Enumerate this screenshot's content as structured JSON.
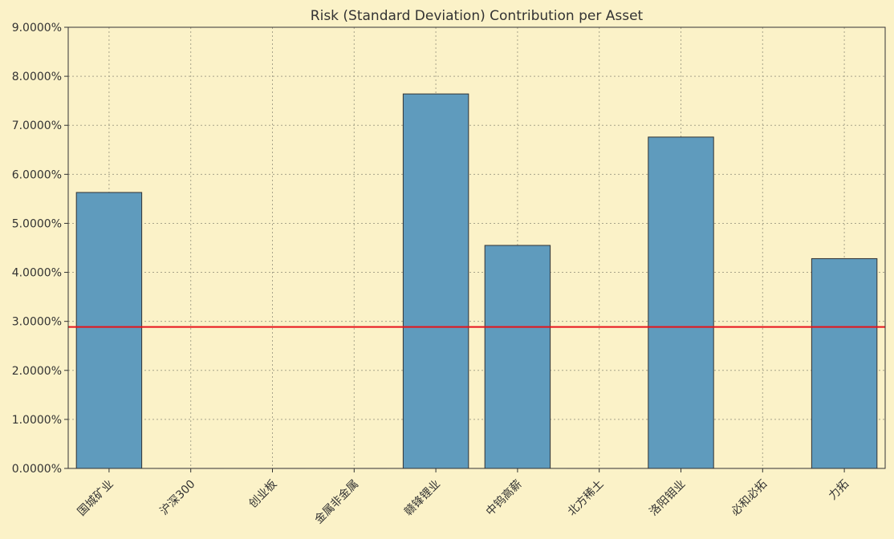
{
  "chart_data": {
    "type": "bar",
    "title": "Risk (Standard Deviation) Contribution per Asset",
    "xlabel": "",
    "ylabel": "",
    "categories": [
      "国城矿业",
      "沪深300",
      "创业板",
      "金属非金属",
      "赣锋锂业",
      "中钨高薪",
      "北方稀土",
      "洛阳钼业",
      "必和必拓",
      "力拓"
    ],
    "values": [
      5.63,
      0.0,
      0.0,
      0.0,
      7.64,
      4.55,
      0.0,
      6.76,
      0.0,
      4.28
    ],
    "value_unit": "%",
    "ylim": [
      0,
      9
    ],
    "yticks": [
      0,
      1,
      2,
      3,
      4,
      5,
      6,
      7,
      8,
      9
    ],
    "ytick_labels": [
      "0.0000%",
      "1.0000%",
      "2.0000%",
      "3.0000%",
      "4.0000%",
      "5.0000%",
      "6.0000%",
      "7.0000%",
      "8.0000%",
      "9.0000%"
    ],
    "reference_line": {
      "value": 2.887,
      "color": "#e8131b"
    },
    "grid": true,
    "colors": {
      "bar": "#5f9bbd",
      "bar_edge": "#333333",
      "background": "#fbf2c8",
      "grid": "#a8a48a",
      "axis": "#333333"
    }
  }
}
